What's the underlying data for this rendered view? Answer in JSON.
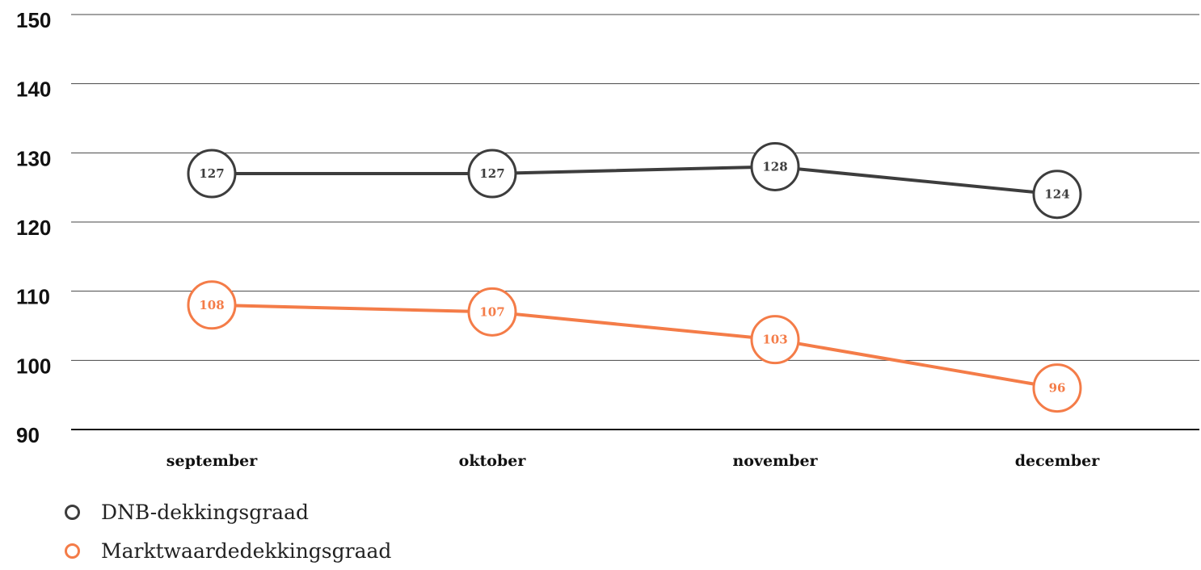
{
  "chart_data": {
    "type": "line",
    "title": "",
    "xlabel": "",
    "ylabel": "",
    "categories": [
      "september",
      "oktober",
      "november",
      "december"
    ],
    "ylim": [
      90,
      150
    ],
    "yticks": [
      "150",
      "140",
      "130",
      "120",
      "110",
      "100",
      "90"
    ],
    "grid": true,
    "legend_position": "bottom-left",
    "series": [
      {
        "name": "DNB-dekkingsgraad",
        "values": [
          127,
          127,
          128,
          124
        ],
        "color": "#3d3d3d"
      },
      {
        "name": "Marktwaardedekkingsgraad",
        "values": [
          108,
          107,
          103,
          96
        ],
        "color": "#f47c48"
      }
    ]
  }
}
